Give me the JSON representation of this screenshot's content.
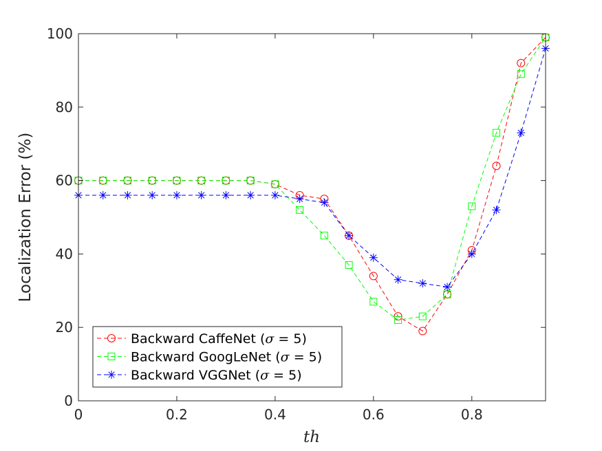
{
  "chart_data": {
    "type": "line",
    "xlabel": "th",
    "ylabel": "Localization Error (%)",
    "xlim": [
      0,
      0.95
    ],
    "ylim": [
      0,
      100
    ],
    "x_ticks": [
      0,
      0.2,
      0.4,
      0.6,
      0.8
    ],
    "x_tick_labels": [
      "0",
      "0.2",
      "0.4",
      "0.6",
      "0.8"
    ],
    "y_ticks": [
      0,
      20,
      40,
      60,
      80,
      100
    ],
    "y_tick_labels": [
      "0",
      "20",
      "40",
      "60",
      "80",
      "100"
    ],
    "grid": false,
    "legend_position": "bottom-left",
    "x": [
      0,
      0.05,
      0.1,
      0.15,
      0.2,
      0.25,
      0.3,
      0.35,
      0.4,
      0.45,
      0.5,
      0.55,
      0.6,
      0.65,
      0.7,
      0.75,
      0.8,
      0.85,
      0.9,
      0.95
    ],
    "series": [
      {
        "name_prefix": "Backward CaffeNet (",
        "name_symbol": "σ",
        "name_suffix": " = 5)",
        "color": "#ff0000",
        "marker": "circle",
        "values": [
          60,
          60,
          60,
          60,
          60,
          60,
          60,
          60,
          59,
          56,
          55,
          45,
          34,
          23,
          19,
          29,
          41,
          64,
          92,
          99
        ]
      },
      {
        "name_prefix": "Backward GoogLeNet (",
        "name_symbol": "σ",
        "name_suffix": " = 5)",
        "color": "#00ff00",
        "marker": "square",
        "values": [
          60,
          60,
          60,
          60,
          60,
          60,
          60,
          60,
          59,
          52,
          45,
          37,
          27,
          22,
          23,
          29,
          53,
          73,
          89,
          99
        ]
      },
      {
        "name_prefix": "Backward VGGNet (",
        "name_symbol": "σ",
        "name_suffix": " = 5)",
        "color": "#0000ff",
        "marker": "asterisk",
        "values": [
          56,
          56,
          56,
          56,
          56,
          56,
          56,
          56,
          56,
          55,
          54,
          45,
          39,
          33,
          32,
          31,
          40,
          52,
          73,
          96
        ]
      }
    ]
  }
}
